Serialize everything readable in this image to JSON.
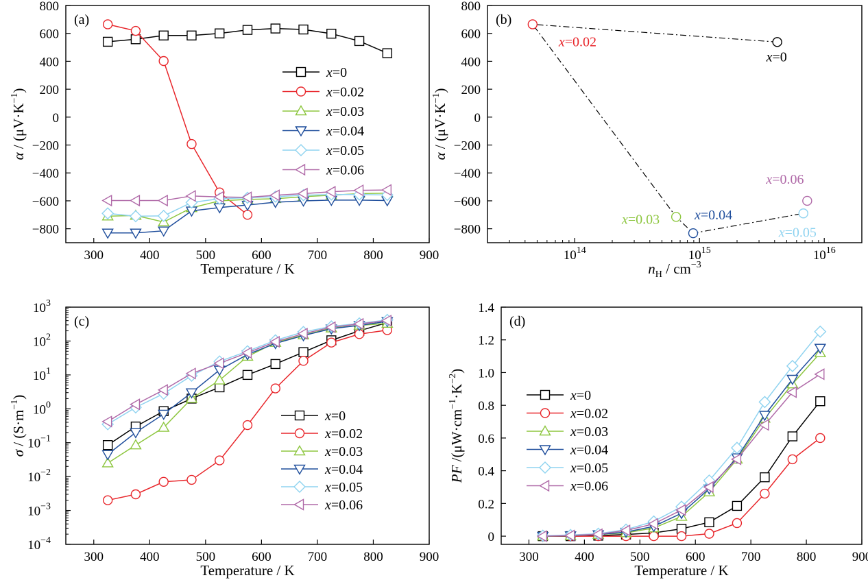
{
  "chart_data": [
    {
      "id": "a",
      "panel_label": "(a)",
      "type": "line",
      "xlabel": "Temperature / K",
      "ylabel": "α / (μV·K⁻¹)",
      "ylabel_parts": [
        "α",
        " / (μV·K",
        "−1",
        ")"
      ],
      "xlim": [
        250,
        900
      ],
      "ylim": [
        -900,
        800
      ],
      "xticks": [
        300,
        400,
        500,
        600,
        700,
        800,
        900
      ],
      "xtick_labels": [
        "300",
        "400",
        "500",
        "600",
        "700",
        "800",
        "900"
      ],
      "yticks": [
        -800,
        -600,
        -400,
        -200,
        0,
        200,
        400,
        600,
        800
      ],
      "ytick_labels": [
        "−800",
        "−600",
        "−400",
        "−200",
        "0",
        "200",
        "400",
        "600",
        "800"
      ],
      "legend_position": "right",
      "legend_labels": [
        "=0",
        "=0.02",
        "=0.03",
        "=0.04",
        "=0.05",
        "=0.06"
      ],
      "x": [
        325,
        375,
        425,
        475,
        525,
        575,
        625,
        675,
        725,
        775,
        825
      ],
      "series": [
        {
          "name": "x=0",
          "marker": "square",
          "color": "#000000",
          "values": [
            540,
            558,
            585,
            585,
            600,
            625,
            635,
            628,
            598,
            545,
            458
          ]
        },
        {
          "name": "x=0.02",
          "marker": "circle",
          "color": "#e8262b",
          "x": [
            325,
            375,
            425,
            475,
            525,
            575
          ],
          "values": [
            665,
            618,
            402,
            -193,
            -540,
            -700
          ]
        },
        {
          "name": "x=0.03",
          "marker": "triangle-up",
          "color": "#8dc63f",
          "values": [
            -710,
            -705,
            -752,
            -650,
            -600,
            -590,
            -585,
            -570,
            -560,
            -548,
            -545
          ]
        },
        {
          "name": "x=0.04",
          "marker": "triangle-down",
          "color": "#1f4e9c",
          "values": [
            -830,
            -830,
            -815,
            -672,
            -648,
            -630,
            -610,
            -600,
            -595,
            -595,
            -598
          ]
        },
        {
          "name": "x=0.05",
          "marker": "diamond",
          "color": "#8fd3f0",
          "values": [
            -690,
            -710,
            -708,
            -612,
            -585,
            -578,
            -570,
            -560,
            -555,
            -555,
            -558
          ]
        },
        {
          "name": "x=0.06",
          "marker": "triangle-left",
          "color": "#b06aa8",
          "values": [
            -598,
            -598,
            -598,
            -565,
            -572,
            -575,
            -560,
            -548,
            -535,
            -525,
            -522
          ]
        }
      ]
    },
    {
      "id": "b",
      "panel_label": "(b)",
      "type": "scatter",
      "xlabel": "nH / cm−3",
      "xlabel_parts": [
        "n",
        "H",
        " / cm",
        "−3"
      ],
      "ylabel": "α / (μV·K⁻¹)",
      "ylabel_parts": [
        "α",
        " / (μV·K",
        "−1",
        ")"
      ],
      "xscale": "log",
      "xlim": [
        20000000000000.0,
        2e+16
      ],
      "ylim": [
        -900,
        800
      ],
      "xticks": [
        100000000000000.0,
        1000000000000000.0,
        1e+16
      ],
      "xtick_base": "10",
      "xtick_exps": [
        "14",
        "15",
        "16"
      ],
      "yticks": [
        -800,
        -600,
        -400,
        -200,
        0,
        200,
        400,
        600,
        800
      ],
      "ytick_labels": [
        "−800",
        "−600",
        "−400",
        "−200",
        "0",
        "200",
        "400",
        "600",
        "800"
      ],
      "connector": "dash-dot",
      "connector_order": [
        "x=0",
        "x=0.02",
        "x=0.03",
        "x=0.04",
        "x=0.05"
      ],
      "points": [
        {
          "name": "x=0",
          "label_value": "=0",
          "x": 4200000000000000.0,
          "y": 538,
          "color": "#000000"
        },
        {
          "name": "x=0.02",
          "label_value": "=0.02",
          "x": 46000000000000.0,
          "y": 665,
          "color": "#e8262b"
        },
        {
          "name": "x=0.03",
          "label_value": "=0.03",
          "x": 650000000000000.0,
          "y": -715,
          "color": "#8dc63f"
        },
        {
          "name": "x=0.04",
          "label_value": "=0.04",
          "x": 890000000000000.0,
          "y": -832,
          "color": "#1f4e9c"
        },
        {
          "name": "x=0.05",
          "label_value": "=0.05",
          "x": 6800000000000000.0,
          "y": -690,
          "color": "#8fd3f0"
        },
        {
          "name": "x=0.06",
          "label_value": "=0.06",
          "x": 7300000000000000.0,
          "y": -600,
          "color": "#b06aa8"
        }
      ]
    },
    {
      "id": "c",
      "panel_label": "(c)",
      "type": "line",
      "xlabel": "Temperature / K",
      "ylabel": "σ / (S·m⁻¹)",
      "ylabel_parts": [
        "σ",
        " / (S·m",
        "−1",
        ")"
      ],
      "yscale": "log",
      "xlim": [
        250,
        900
      ],
      "ylim": [
        0.0001,
        1000
      ],
      "xticks": [
        300,
        400,
        500,
        600,
        700,
        800,
        900
      ],
      "xtick_labels": [
        "300",
        "400",
        "500",
        "600",
        "700",
        "800",
        "900"
      ],
      "yticks": [
        0.0001,
        0.001,
        0.01,
        0.1,
        1,
        10,
        100,
        1000
      ],
      "ytick_base": "10",
      "ytick_exps": [
        "−4",
        "−3",
        "−2",
        "−1",
        "0",
        "1",
        "2",
        "3"
      ],
      "legend_position": "bottom-right",
      "legend_labels": [
        "=0",
        "=0.02",
        "=0.03",
        "=0.04",
        "=0.05",
        "=0.06"
      ],
      "x": [
        325,
        375,
        425,
        475,
        525,
        575,
        625,
        675,
        725,
        775,
        825
      ],
      "series": [
        {
          "name": "x=0",
          "marker": "square",
          "color": "#000000",
          "values": [
            0.085,
            0.3,
            0.85,
            2.0,
            4.3,
            10,
            21,
            47,
            105,
            200,
            350
          ]
        },
        {
          "name": "x=0.02",
          "marker": "circle",
          "color": "#e8262b",
          "values": [
            0.002,
            0.003,
            0.007,
            0.008,
            0.03,
            0.33,
            4.0,
            26,
            90,
            160,
            210
          ]
        },
        {
          "name": "x=0.03",
          "marker": "triangle-up",
          "color": "#8dc63f",
          "values": [
            0.025,
            0.085,
            0.28,
            2.0,
            7.0,
            35,
            90,
            150,
            240,
            290,
            330
          ]
        },
        {
          "name": "x=0.04",
          "marker": "triangle-down",
          "color": "#1f4e9c",
          "values": [
            0.045,
            0.2,
            0.7,
            3.0,
            14,
            40,
            85,
            145,
            230,
            290,
            380
          ]
        },
        {
          "name": "x=0.05",
          "marker": "diamond",
          "color": "#8fd3f0",
          "values": [
            0.35,
            1.1,
            2.8,
            9.5,
            25,
            50,
            105,
            185,
            270,
            330,
            420
          ]
        },
        {
          "name": "x=0.06",
          "marker": "triangle-left",
          "color": "#b06aa8",
          "values": [
            0.42,
            1.35,
            3.6,
            11,
            22,
            45,
            95,
            165,
            255,
            320,
            400
          ]
        }
      ]
    },
    {
      "id": "d",
      "panel_label": "(d)",
      "type": "line",
      "xlabel": "Temperature / K",
      "ylabel": "PF /(μW·cm⁻¹·K⁻²)",
      "ylabel_parts": [
        "PF",
        " /(μW·cm",
        "−1",
        "·K",
        "−2",
        ")"
      ],
      "xlim": [
        250,
        900
      ],
      "ylim": [
        -0.05,
        1.4
      ],
      "xticks": [
        300,
        400,
        500,
        600,
        700,
        800,
        900
      ],
      "xtick_labels": [
        "300",
        "400",
        "500",
        "600",
        "700",
        "800",
        "900"
      ],
      "yticks": [
        0,
        0.2,
        0.4,
        0.6,
        0.8,
        1.0,
        1.2,
        1.4
      ],
      "ytick_labels": [
        "0",
        "0.2",
        "0.4",
        "0.6",
        "0.8",
        "1.0",
        "1.2",
        "1.4"
      ],
      "legend_position": "left",
      "legend_labels": [
        "=0",
        "=0.02",
        "=0.03",
        "=0.04",
        "=0.05",
        "=0.06"
      ],
      "x": [
        325,
        375,
        425,
        475,
        525,
        575,
        625,
        675,
        725,
        775,
        825
      ],
      "series": [
        {
          "name": "x=0",
          "marker": "square",
          "color": "#000000",
          "values": [
            0.0,
            0.0,
            0.003,
            0.01,
            0.02,
            0.045,
            0.085,
            0.185,
            0.36,
            0.61,
            0.825
          ]
        },
        {
          "name": "x=0.02",
          "marker": "circle",
          "color": "#e8262b",
          "values": [
            0.0,
            0.0,
            0.0,
            0.0,
            0.0,
            0.0,
            0.015,
            0.08,
            0.26,
            0.47,
            0.6
          ]
        },
        {
          "name": "x=0.03",
          "marker": "triangle-up",
          "color": "#8dc63f",
          "values": [
            0.0,
            0.002,
            0.01,
            0.02,
            0.05,
            0.12,
            0.27,
            0.47,
            0.72,
            0.93,
            1.12
          ]
        },
        {
          "name": "x=0.04",
          "marker": "triangle-down",
          "color": "#1f4e9c",
          "values": [
            0.0,
            0.003,
            0.01,
            0.025,
            0.06,
            0.14,
            0.29,
            0.48,
            0.74,
            0.96,
            1.15
          ]
        },
        {
          "name": "x=0.05",
          "marker": "diamond",
          "color": "#8fd3f0",
          "values": [
            0.003,
            0.007,
            0.015,
            0.04,
            0.09,
            0.18,
            0.34,
            0.54,
            0.82,
            1.04,
            1.25
          ]
        },
        {
          "name": "x=0.06",
          "marker": "triangle-left",
          "color": "#b06aa8",
          "values": [
            0.0,
            0.004,
            0.012,
            0.035,
            0.075,
            0.16,
            0.3,
            0.47,
            0.68,
            0.88,
            0.99
          ]
        }
      ]
    }
  ]
}
